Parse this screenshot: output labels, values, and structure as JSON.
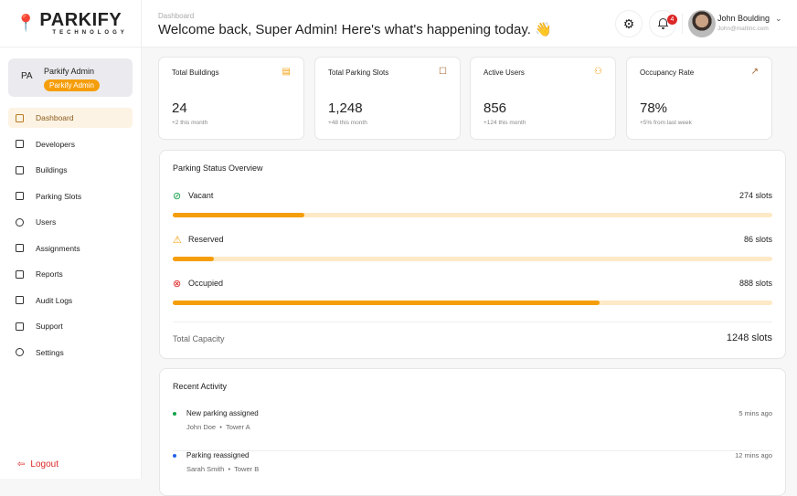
{
  "brand": {
    "name": "PARKIFY",
    "tagline": "TECHNOLOGY"
  },
  "profile": {
    "initials": "PA",
    "name": "Parkify Admin",
    "role": "Parkify Admin"
  },
  "sidebar": {
    "items": [
      {
        "label": "Dashboard",
        "icon": "grid-icon",
        "active": true
      },
      {
        "label": "Developers",
        "icon": "building-icon"
      },
      {
        "label": "Buildings",
        "icon": "buildings-icon"
      },
      {
        "label": "Parking Slots",
        "icon": "square-icon"
      },
      {
        "label": "Users",
        "icon": "users-icon"
      },
      {
        "label": "Assignments",
        "icon": "clipboard-icon"
      },
      {
        "label": "Reports",
        "icon": "file-icon"
      },
      {
        "label": "Audit Logs",
        "icon": "file-lock-icon"
      },
      {
        "label": "Support",
        "icon": "message-icon"
      },
      {
        "label": "Settings",
        "icon": "gear-icon"
      }
    ],
    "logout": "Logout"
  },
  "header": {
    "breadcrumb": "Dashboard",
    "welcome": "Welcome back, Super Admin! Here's what's happening today. 👋",
    "notifications": "4",
    "user": {
      "name": "John Boulding",
      "email": "John@mattinc.com"
    }
  },
  "stats": [
    {
      "title": "Total Buildings",
      "value": "24",
      "sub": "+2 this month",
      "icon": "building-icon"
    },
    {
      "title": "Total Parking Slots",
      "value": "1,248",
      "sub": "+48 this month",
      "icon": "square-icon"
    },
    {
      "title": "Active Users",
      "value": "856",
      "sub": "+124 this month",
      "icon": "users-icon"
    },
    {
      "title": "Occupancy Rate",
      "value": "78%",
      "sub": "+5% from last week",
      "icon": "trending-up-icon"
    }
  ],
  "parking": {
    "title": "Parking Status Overview",
    "rows": [
      {
        "label": "Vacant",
        "count": "274 slots",
        "value": 274,
        "icon": "check-circle-icon",
        "color": "#16a34a"
      },
      {
        "label": "Reserved",
        "count": "86 slots",
        "value": 86,
        "icon": "warning-icon",
        "color": "#f59e0b"
      },
      {
        "label": "Occupied",
        "count": "888 slots",
        "value": 888,
        "icon": "x-circle-icon",
        "color": "#dc2626"
      }
    ],
    "total_label": "Total Capacity",
    "total_value": "1248 slots",
    "capacity": 1248
  },
  "activity": {
    "title": "Recent Activity",
    "items": [
      {
        "title": "New parking assigned",
        "person": "John Doe",
        "place": "Tower A",
        "time": "5 mins ago",
        "color": "#16a34a"
      },
      {
        "title": "Parking reassigned",
        "person": "Sarah Smith",
        "place": "Tower B",
        "time": "12 mins ago",
        "color": "#2563eb"
      }
    ]
  }
}
